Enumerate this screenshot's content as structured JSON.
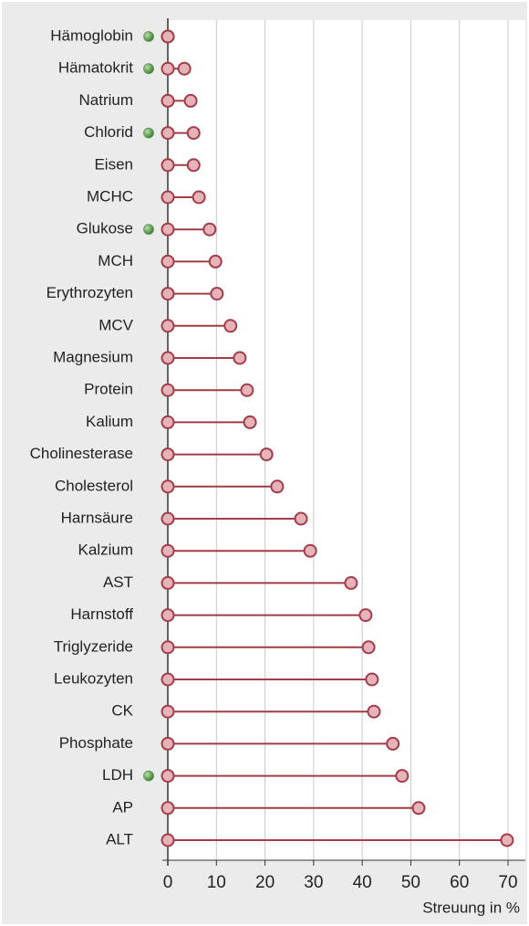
{
  "chart_data": {
    "type": "lollipop",
    "categories": [
      "Hämoglobin",
      "Hämatokrit",
      "Natrium",
      "Chlorid",
      "Eisen",
      "MCHC",
      "Glukose",
      "MCH",
      "Erythrozyten",
      "MCV",
      "Magnesium",
      "Protein",
      "Kalium",
      "Cholinesterase",
      "Cholesterol",
      "Harnsäure",
      "Kalzium",
      "AST",
      "Harnstoff",
      "Triglyzeride",
      "Leukozyten",
      "CK",
      "Phosphate",
      "LDH",
      "AP",
      "ALT"
    ],
    "values": [
      0,
      3.4,
      4.7,
      5.3,
      5.3,
      6.4,
      8.6,
      9.8,
      10.1,
      12.9,
      14.8,
      16.3,
      16.9,
      20.3,
      22.5,
      27.4,
      29.3,
      37.7,
      40.7,
      41.3,
      42,
      42.4,
      46.3,
      48.2,
      51.6,
      69.8
    ],
    "highlight": [
      true,
      true,
      false,
      true,
      false,
      false,
      true,
      false,
      false,
      false,
      false,
      false,
      false,
      false,
      false,
      false,
      false,
      false,
      false,
      false,
      false,
      false,
      false,
      true,
      false,
      false
    ],
    "xlabel": "Streuung in %",
    "xlim": [
      0,
      70
    ],
    "xticks": [
      0,
      10,
      20,
      30,
      40,
      50,
      60,
      70
    ],
    "grid": true,
    "color": "#a23d48",
    "marker_fill": "#e7b3bb",
    "highlight_color": "#5d9a52"
  }
}
